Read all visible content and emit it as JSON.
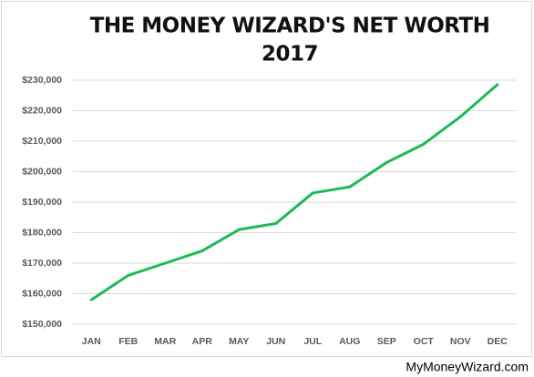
{
  "chart_data": {
    "type": "line",
    "title": "THE MONEY WIZARD'S NET WORTH",
    "subtitle": "2017",
    "watermark": "MyMoneyWizard.com",
    "categories": [
      "JAN",
      "FEB",
      "MAR",
      "APR",
      "MAY",
      "JUN",
      "JUL",
      "AUG",
      "SEP",
      "OCT",
      "NOV",
      "DEC"
    ],
    "series": [
      {
        "name": "Net Worth",
        "color": "#1db954",
        "values": [
          158000,
          166000,
          170000,
          174000,
          181000,
          183000,
          193000,
          195000,
          203000,
          209000,
          218000,
          228500
        ]
      }
    ],
    "ylim": [
      150000,
      230000
    ],
    "yticks": [
      {
        "value": 150000,
        "label": "$150,000"
      },
      {
        "value": 160000,
        "label": "$160,000"
      },
      {
        "value": 170000,
        "label": "$170,000"
      },
      {
        "value": 180000,
        "label": "$180,000"
      },
      {
        "value": 190000,
        "label": "$190,000"
      },
      {
        "value": 200000,
        "label": "$200,000"
      },
      {
        "value": 210000,
        "label": "$210,000"
      },
      {
        "value": 220000,
        "label": "$220,000"
      },
      {
        "value": 230000,
        "label": "$230,000"
      }
    ],
    "grid": true
  }
}
